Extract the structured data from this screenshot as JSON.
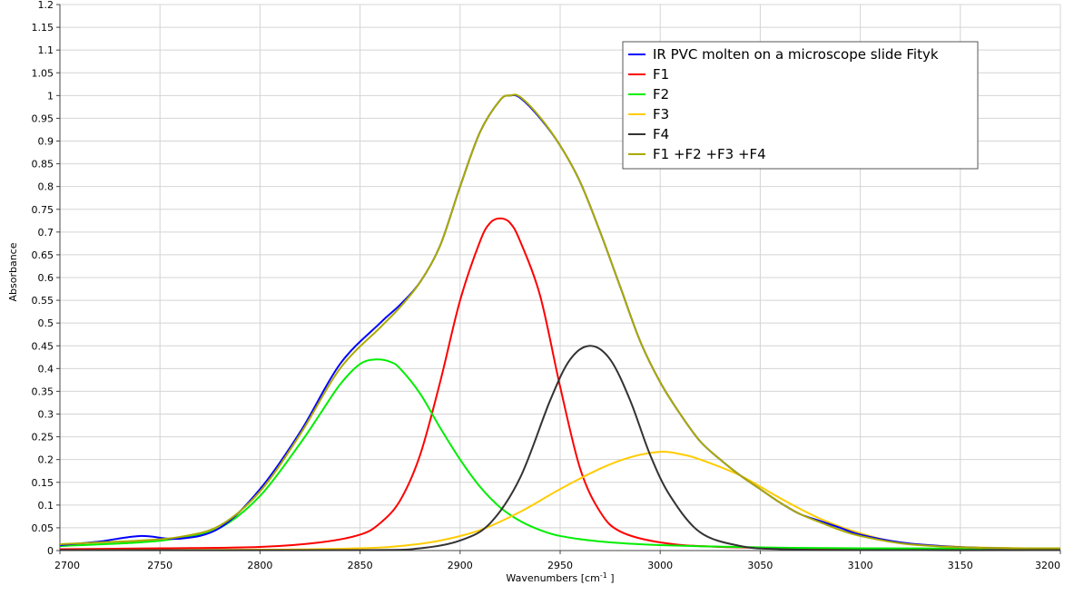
{
  "chart_data": {
    "type": "line",
    "title": "",
    "xlabel": "Wavenumbers [cm",
    "xlabel_sup": "-1",
    "xlabel_end": " ]",
    "ylabel": "Absorbance",
    "xlim": [
      2700,
      3200
    ],
    "ylim": [
      0,
      1.2
    ],
    "grid": true,
    "legend_position": "top-right",
    "x_ticks": [
      2700,
      2750,
      2800,
      2850,
      2900,
      2950,
      3000,
      3050,
      3100,
      3150,
      3200
    ],
    "x_tick_labels": [
      "2700",
      "2750",
      "2800",
      "2850",
      "2900",
      "2950",
      "3000",
      "3050",
      "3100",
      "3150",
      "3200"
    ],
    "y_ticks": [
      0,
      0.05,
      0.1,
      0.15,
      0.2,
      0.25,
      0.3,
      0.35,
      0.4,
      0.45,
      0.5,
      0.55,
      0.6,
      0.65,
      0.7,
      0.75,
      0.8,
      0.85,
      0.9,
      0.95,
      1,
      1.05,
      1.1,
      1.15,
      1.2
    ],
    "y_tick_labels": [
      "0",
      "0.05",
      "0.1",
      "0.15",
      "0.2",
      "0.25",
      "0.3",
      "0.35",
      "0.4",
      "0.45",
      "0.5",
      "0.55",
      "0.6",
      "0.65",
      "0.7",
      "0.75",
      "0.8",
      "0.85",
      "0.9",
      "0.95",
      "1",
      "1.05",
      "1.1",
      "1.15",
      "1.2"
    ],
    "series": [
      {
        "name": "IR PVC molten on a microscope slide Fityk",
        "color": "#0000ff",
        "x": [
          2700,
          2720,
          2740,
          2760,
          2780,
          2800,
          2820,
          2840,
          2860,
          2870,
          2880,
          2890,
          2900,
          2910,
          2920,
          2925,
          2930,
          2940,
          2950,
          2960,
          2970,
          2980,
          2990,
          3000,
          3010,
          3020,
          3030,
          3040,
          3050,
          3060,
          3070,
          3080,
          3090,
          3100,
          3120,
          3140,
          3160,
          3180,
          3200
        ],
        "y": [
          0.012,
          0.02,
          0.032,
          0.026,
          0.05,
          0.135,
          0.26,
          0.41,
          0.5,
          0.54,
          0.59,
          0.67,
          0.8,
          0.92,
          0.99,
          1.0,
          0.995,
          0.95,
          0.89,
          0.81,
          0.7,
          0.58,
          0.46,
          0.37,
          0.3,
          0.24,
          0.2,
          0.165,
          0.135,
          0.105,
          0.08,
          0.065,
          0.05,
          0.035,
          0.018,
          0.01,
          0.006,
          0.005,
          0.005
        ]
      },
      {
        "name": "F1",
        "color": "#ff0000",
        "x": [
          2700,
          2750,
          2800,
          2830,
          2850,
          2860,
          2870,
          2880,
          2890,
          2900,
          2910,
          2915,
          2920,
          2925,
          2930,
          2940,
          2950,
          2960,
          2970,
          2980,
          3000,
          3030,
          3100,
          3200
        ],
        "y": [
          0.003,
          0.005,
          0.008,
          0.018,
          0.035,
          0.06,
          0.11,
          0.21,
          0.37,
          0.55,
          0.68,
          0.72,
          0.73,
          0.72,
          0.68,
          0.56,
          0.36,
          0.18,
          0.085,
          0.042,
          0.018,
          0.008,
          0.004,
          0.002
        ]
      },
      {
        "name": "F2",
        "color": "#00ee00",
        "x": [
          2700,
          2740,
          2760,
          2780,
          2800,
          2820,
          2830,
          2840,
          2850,
          2858,
          2865,
          2870,
          2880,
          2890,
          2900,
          2910,
          2920,
          2930,
          2940,
          2950,
          2970,
          3000,
          3050,
          3100,
          3200
        ],
        "y": [
          0.01,
          0.018,
          0.028,
          0.05,
          0.12,
          0.235,
          0.3,
          0.365,
          0.41,
          0.42,
          0.415,
          0.4,
          0.345,
          0.27,
          0.2,
          0.14,
          0.095,
          0.065,
          0.045,
          0.032,
          0.02,
          0.012,
          0.007,
          0.005,
          0.004
        ]
      },
      {
        "name": "F3",
        "color": "#ffcc00",
        "x": [
          2700,
          2800,
          2850,
          2870,
          2890,
          2910,
          2930,
          2950,
          2970,
          2985,
          3000,
          3010,
          3020,
          3040,
          3060,
          3080,
          3100,
          3120,
          3150,
          3200
        ],
        "y": [
          0.001,
          0.002,
          0.005,
          0.01,
          0.022,
          0.045,
          0.085,
          0.135,
          0.18,
          0.205,
          0.217,
          0.212,
          0.2,
          0.165,
          0.115,
          0.07,
          0.038,
          0.018,
          0.008,
          0.004
        ]
      },
      {
        "name": "F4",
        "color": "#333333",
        "x": [
          2700,
          2850,
          2880,
          2900,
          2915,
          2930,
          2945,
          2955,
          2965,
          2975,
          2985,
          2995,
          3005,
          3020,
          3040,
          3060,
          3100,
          3200
        ],
        "y": [
          0.001,
          0.001,
          0.005,
          0.022,
          0.06,
          0.16,
          0.33,
          0.42,
          0.45,
          0.42,
          0.33,
          0.21,
          0.12,
          0.04,
          0.01,
          0.003,
          0.001,
          0.001
        ]
      },
      {
        "name": "F1 +F2 +F3 +F4",
        "color": "#aaaa00",
        "x": [
          2700,
          2720,
          2740,
          2760,
          2780,
          2800,
          2820,
          2840,
          2860,
          2870,
          2880,
          2890,
          2900,
          2910,
          2920,
          2925,
          2930,
          2940,
          2950,
          2960,
          2970,
          2980,
          2990,
          3000,
          3010,
          3020,
          3030,
          3040,
          3050,
          3060,
          3070,
          3080,
          3090,
          3100,
          3120,
          3140,
          3160,
          3180,
          3200
        ],
        "y": [
          0.014,
          0.018,
          0.022,
          0.03,
          0.055,
          0.13,
          0.255,
          0.4,
          0.49,
          0.535,
          0.59,
          0.67,
          0.8,
          0.92,
          0.99,
          1.0,
          0.997,
          0.952,
          0.89,
          0.81,
          0.7,
          0.58,
          0.46,
          0.37,
          0.3,
          0.24,
          0.2,
          0.165,
          0.135,
          0.105,
          0.08,
          0.062,
          0.045,
          0.032,
          0.016,
          0.009,
          0.006,
          0.005,
          0.005
        ]
      }
    ]
  }
}
